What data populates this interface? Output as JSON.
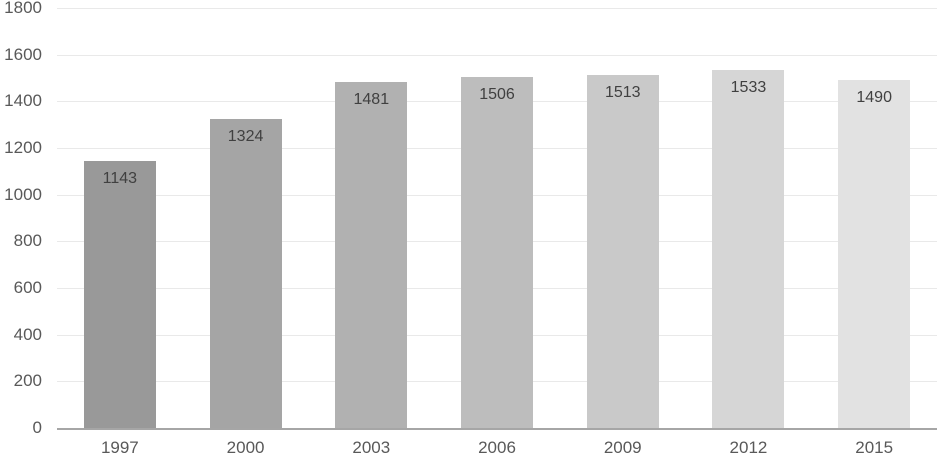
{
  "chart_data": {
    "type": "bar",
    "title": "",
    "xlabel": "",
    "ylabel": "",
    "categories": [
      "1997",
      "2000",
      "2003",
      "2006",
      "2009",
      "2012",
      "2015"
    ],
    "values": [
      1143,
      1324,
      1481,
      1506,
      1513,
      1533,
      1490
    ],
    "ylim": [
      0,
      1800
    ],
    "yticks": [
      0,
      200,
      400,
      600,
      800,
      1000,
      1200,
      1400,
      1600,
      1800
    ],
    "grid": true,
    "legend": false,
    "data_labels_position": "inside-end",
    "bar_colors": [
      "#999999",
      "#a5a5a5",
      "#b1b1b1",
      "#bdbdbd",
      "#c9c9c9",
      "#d6d6d6",
      "#e2e2e2"
    ],
    "data_label_color": "#404040",
    "axis_label_color": "#595959",
    "gridline_color": "#e9e9e9",
    "axis_line_color": "#a6a6a6"
  }
}
